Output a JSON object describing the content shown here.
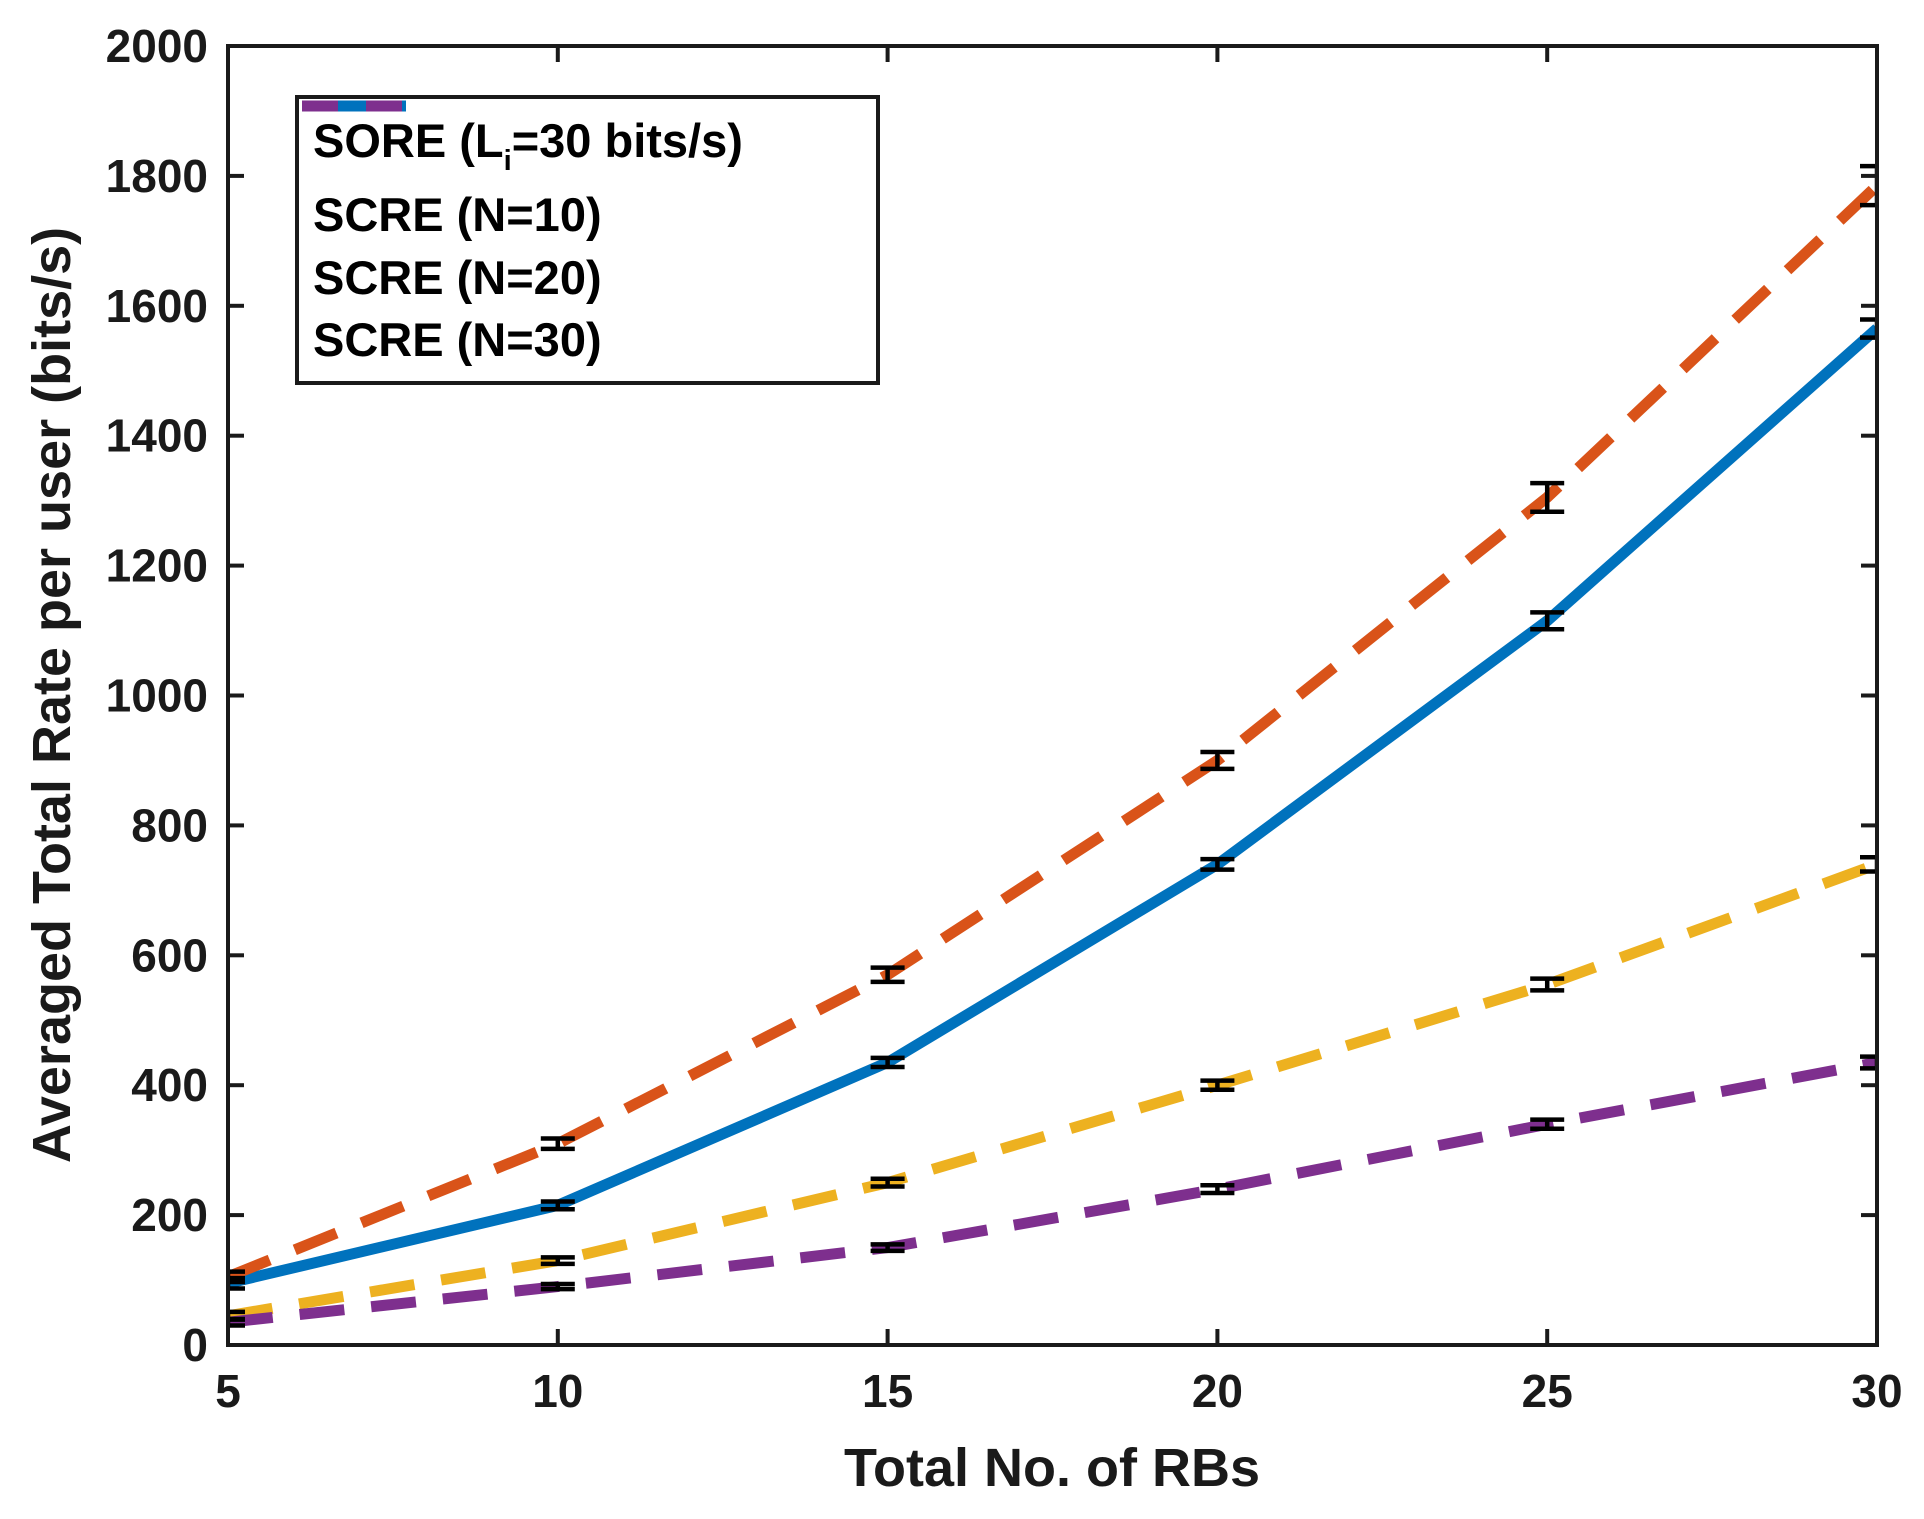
{
  "figure": {
    "background": "#ffffff",
    "axis_color": "#1a1a1a",
    "text_color": "#1a1a1a",
    "error_bar_color": "#000000"
  },
  "chart_data": {
    "type": "line",
    "title": "",
    "xlabel": "Total No. of RBs",
    "ylabel": "Averaged Total Rate per user (bits/s)",
    "x": [
      5,
      10,
      15,
      20,
      25,
      30
    ],
    "xlim": [
      5,
      30
    ],
    "ylim": [
      0,
      2000
    ],
    "x_ticks": [
      5,
      10,
      15,
      20,
      25,
      30
    ],
    "y_ticks": [
      0,
      200,
      400,
      600,
      800,
      1000,
      1200,
      1400,
      1600,
      1800,
      2000
    ],
    "grid": false,
    "legend_position": "top-left-inside",
    "has_error_bars": true,
    "series": [
      {
        "name": "SORE (Li=30 bits/s)",
        "legend_parts": {
          "prefix": "SORE (L",
          "sub": "i",
          "suffix": "=30 bits/s)"
        },
        "color": "#0072BD",
        "style": "solid",
        "values": [
          95,
          215,
          435,
          740,
          1115,
          1565
        ],
        "error_plus_minus": [
          8,
          6,
          7,
          8,
          13,
          14
        ]
      },
      {
        "name": "SCRE (N=10)",
        "legend_parts": {
          "prefix": "SCRE (N=10)",
          "sub": "",
          "suffix": ""
        },
        "color": "#D95319",
        "style": "dashed",
        "values": [
          105,
          310,
          570,
          900,
          1305,
          1785
        ],
        "error_plus_minus": [
          8,
          8,
          11,
          13,
          22,
          30
        ]
      },
      {
        "name": "SCRE (N=20)",
        "legend_parts": {
          "prefix": "SCRE (N=20)",
          "sub": "",
          "suffix": ""
        },
        "color": "#EDB120",
        "style": "dashed",
        "values": [
          45,
          130,
          250,
          400,
          555,
          740
        ],
        "error_plus_minus": [
          6,
          5,
          6,
          7,
          9,
          11
        ]
      },
      {
        "name": "SCRE (N=30)",
        "legend_parts": {
          "prefix": "SCRE (N=30)",
          "sub": "",
          "suffix": ""
        },
        "color": "#7E2F8E",
        "style": "dashed",
        "values": [
          35,
          90,
          150,
          240,
          340,
          435
        ],
        "error_plus_minus": [
          5,
          4,
          5,
          6,
          7,
          9
        ]
      }
    ]
  }
}
